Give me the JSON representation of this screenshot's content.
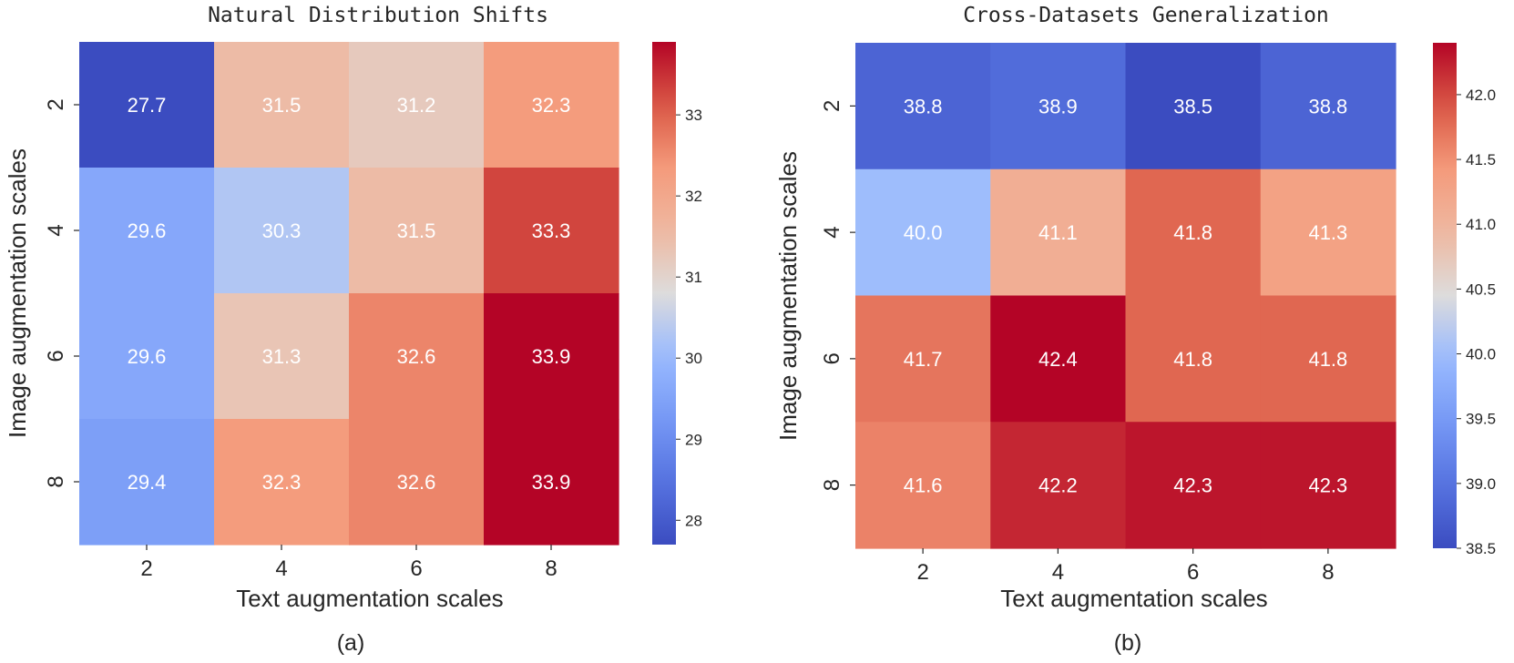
{
  "chart_data": [
    {
      "type": "heatmap",
      "title": "Natural Distribution Shifts",
      "xlabel": "Text augmentation scales",
      "ylabel": "Image augmentation scales",
      "x_categories": [
        "2",
        "4",
        "6",
        "8"
      ],
      "y_categories": [
        "2",
        "4",
        "6",
        "8"
      ],
      "values": [
        [
          27.7,
          31.5,
          31.2,
          32.3
        ],
        [
          29.6,
          30.3,
          31.5,
          33.3
        ],
        [
          29.6,
          31.3,
          32.6,
          33.9
        ],
        [
          29.4,
          32.3,
          32.6,
          33.9
        ]
      ],
      "value_labels": [
        [
          "27.7",
          "31.5",
          "31.2",
          "32.3"
        ],
        [
          "29.6",
          "30.3",
          "31.5",
          "33.3"
        ],
        [
          "29.6",
          "31.3",
          "32.6",
          "33.9"
        ],
        [
          "29.4",
          "32.3",
          "32.6",
          "33.9"
        ]
      ],
      "colormap": "coolwarm",
      "colorbar": {
        "min": 27.7,
        "max": 33.9,
        "ticks": [
          28,
          29,
          30,
          31,
          32,
          33
        ],
        "tick_labels": [
          "28",
          "29",
          "30",
          "31",
          "32",
          "33"
        ]
      },
      "caption": "(a)"
    },
    {
      "type": "heatmap",
      "title": "Cross-Datasets Generalization",
      "xlabel": "Text augmentation scales",
      "ylabel": "Image augmentation scales",
      "x_categories": [
        "2",
        "4",
        "6",
        "8"
      ],
      "y_categories": [
        "2",
        "4",
        "6",
        "8"
      ],
      "values": [
        [
          38.8,
          38.9,
          38.5,
          38.8
        ],
        [
          40.0,
          41.1,
          41.8,
          41.3
        ],
        [
          41.7,
          42.4,
          41.8,
          41.8
        ],
        [
          41.6,
          42.2,
          42.3,
          42.3
        ]
      ],
      "value_labels": [
        [
          "38.8",
          "38.9",
          "38.5",
          "38.8"
        ],
        [
          "40.0",
          "41.1",
          "41.8",
          "41.3"
        ],
        [
          "41.7",
          "42.4",
          "41.8",
          "41.8"
        ],
        [
          "41.6",
          "42.2",
          "42.3",
          "42.3"
        ]
      ],
      "colormap": "coolwarm",
      "colorbar": {
        "min": 38.5,
        "max": 42.4,
        "ticks": [
          38.5,
          39.0,
          39.5,
          40.0,
          40.5,
          41.0,
          41.5,
          42.0
        ],
        "tick_labels": [
          "38.5",
          "39.0",
          "39.5",
          "40.0",
          "40.5",
          "41.0",
          "41.5",
          "42.0"
        ]
      },
      "caption": "(b)"
    }
  ]
}
